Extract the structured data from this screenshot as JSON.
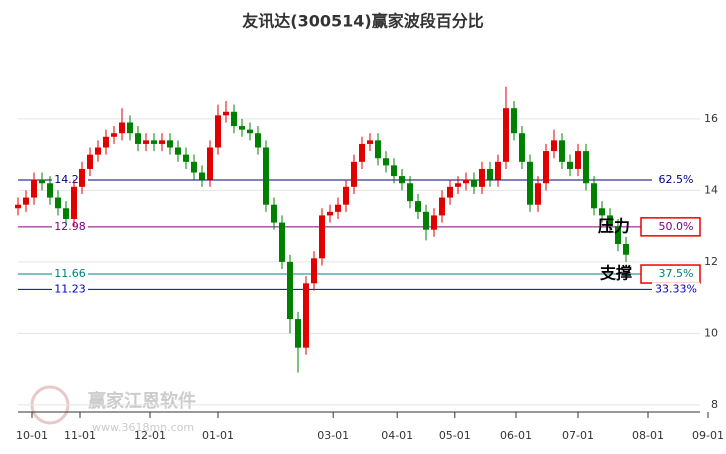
{
  "chart_data": {
    "type": "candlestick",
    "title": "友讯达(300514)赢家波段百分比",
    "open": [
      13.5,
      13.6,
      13.8,
      14.3,
      14.2,
      13.8,
      13.5,
      13.2,
      14.1,
      14.6,
      15.0,
      15.2,
      15.5,
      15.6,
      15.9,
      15.6,
      15.3,
      15.4,
      15.3,
      15.4,
      15.2,
      15.0,
      14.8,
      14.5,
      14.3,
      15.2,
      16.1,
      16.2,
      15.8,
      15.7,
      15.6,
      15.2,
      13.6,
      13.1,
      12.0,
      10.4,
      9.6,
      11.4,
      12.1,
      13.3,
      13.4,
      13.6,
      14.1,
      14.8,
      15.3,
      15.4,
      14.9,
      14.7,
      14.4,
      14.2,
      13.7,
      13.4,
      12.9,
      13.3,
      13.8,
      14.1,
      14.2,
      14.3,
      14.1,
      14.6,
      14.3,
      14.8,
      16.3,
      15.6,
      14.8,
      13.6,
      14.2,
      15.1,
      15.4,
      14.8,
      14.6,
      15.1,
      14.2,
      13.5,
      13.3,
      13.0,
      12.5
    ],
    "high": [
      13.8,
      14.0,
      14.5,
      14.5,
      14.4,
      14.0,
      13.7,
      14.3,
      14.8,
      15.2,
      15.4,
      15.7,
      15.8,
      16.3,
      16.1,
      15.8,
      15.6,
      15.6,
      15.6,
      15.6,
      15.4,
      15.2,
      15.0,
      14.7,
      15.4,
      16.4,
      16.5,
      16.4,
      16.0,
      15.9,
      15.8,
      15.4,
      13.8,
      13.3,
      12.2,
      10.6,
      11.6,
      12.3,
      13.5,
      13.6,
      13.8,
      14.3,
      15.0,
      15.5,
      15.6,
      15.6,
      15.1,
      14.9,
      14.6,
      14.4,
      13.9,
      13.6,
      13.5,
      14.0,
      14.3,
      14.4,
      14.5,
      14.5,
      14.8,
      14.8,
      15.0,
      16.9,
      16.5,
      15.8,
      15.0,
      14.4,
      15.3,
      15.7,
      15.6,
      15.0,
      15.3,
      15.3,
      14.4,
      13.7,
      13.5,
      13.2,
      12.7
    ],
    "low": [
      13.3,
      13.4,
      13.6,
      14.0,
      13.6,
      13.3,
      13.0,
      13.0,
      13.9,
      14.4,
      14.8,
      15.0,
      15.3,
      15.4,
      15.4,
      15.1,
      15.1,
      15.1,
      15.1,
      15.0,
      14.8,
      14.6,
      14.3,
      14.1,
      14.1,
      15.0,
      15.9,
      15.6,
      15.5,
      15.4,
      15.0,
      13.4,
      12.9,
      11.8,
      10.0,
      8.9,
      9.4,
      11.2,
      11.9,
      13.1,
      13.2,
      13.4,
      13.9,
      14.6,
      15.1,
      14.7,
      14.5,
      14.2,
      14.0,
      13.5,
      13.2,
      12.6,
      12.7,
      13.1,
      13.6,
      13.9,
      14.0,
      13.9,
      13.9,
      14.1,
      14.1,
      14.6,
      15.4,
      14.6,
      13.4,
      13.4,
      14.0,
      14.9,
      14.6,
      14.4,
      14.4,
      14.0,
      13.3,
      13.1,
      12.8,
      12.3,
      12.0
    ],
    "close": [
      13.6,
      13.8,
      14.3,
      14.2,
      13.8,
      13.5,
      13.2,
      14.1,
      14.6,
      15.0,
      15.2,
      15.5,
      15.6,
      15.9,
      15.6,
      15.3,
      15.4,
      15.3,
      15.4,
      15.2,
      15.0,
      14.8,
      14.5,
      14.3,
      15.2,
      16.1,
      16.2,
      15.8,
      15.7,
      15.6,
      15.2,
      13.6,
      13.1,
      12.0,
      10.4,
      9.6,
      11.4,
      12.1,
      13.3,
      13.4,
      13.6,
      14.1,
      14.8,
      15.3,
      15.4,
      14.9,
      14.7,
      14.4,
      14.2,
      13.7,
      13.4,
      12.9,
      13.3,
      13.8,
      14.1,
      14.2,
      14.3,
      14.1,
      14.6,
      14.3,
      14.8,
      16.3,
      15.6,
      14.8,
      13.6,
      14.2,
      15.1,
      15.4,
      14.8,
      14.6,
      15.1,
      14.2,
      13.5,
      13.3,
      13.0,
      12.5,
      12.2
    ],
    "up_color": "#e00000",
    "down_color": "#008000",
    "xlim": [
      0,
      87
    ],
    "xticks": [
      {
        "value": 1.75,
        "label": "10-01"
      },
      {
        "value": 7.75,
        "label": "11-01"
      },
      {
        "value": 16.5,
        "label": "12-01"
      },
      {
        "value": 25,
        "label": "01-01"
      },
      {
        "value": 39.4,
        "label": "03-01"
      },
      {
        "value": 47.4,
        "label": "04-01"
      },
      {
        "value": 54.6,
        "label": "05-01"
      },
      {
        "value": 62.25,
        "label": "06-01"
      },
      {
        "value": 70,
        "label": "07-01"
      },
      {
        "value": 78.75,
        "label": "08-01"
      },
      {
        "value": 86.25,
        "label": "09-01"
      }
    ],
    "ylim": [
      7.8,
      17.9
    ],
    "yticks": [
      8,
      10,
      12,
      14,
      16
    ],
    "grid": true,
    "levels": [
      {
        "value": 14.29,
        "label": "62.5%",
        "color": "#000080",
        "boxed": false
      },
      {
        "value": 12.98,
        "label": "50.0%",
        "color": "#800080",
        "boxed": true
      },
      {
        "value": 11.66,
        "label": "37.5%",
        "color": "#008080",
        "boxed": true
      },
      {
        "value": 11.23,
        "label": "33.33%",
        "color": "#0000cc",
        "boxed": false
      }
    ],
    "annotations": [
      "压力",
      "支撑"
    ],
    "watermark": [
      "赢家江恩软件",
      "www.3618mn.com"
    ]
  }
}
